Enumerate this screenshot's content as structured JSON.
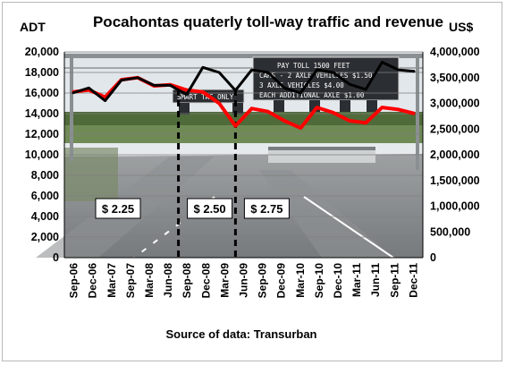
{
  "chart_data": {
    "type": "line",
    "title": "Pocahontas quaterly toll-way traffic and revenue",
    "ylabel_left": "ADT",
    "ylabel_right": "US$",
    "source": "Source of data:  Transurban",
    "categories": [
      "Sep-06",
      "Dec-06",
      "Mar-07",
      "Jun-07",
      "Sep-07",
      "Dec-07",
      "Mar-08",
      "Jun-08",
      "Sep-08",
      "Dec-08",
      "Mar-09",
      "Jun-09",
      "Sep-09",
      "Dec-09",
      "Mar-10",
      "Jun-10",
      "Sep-10",
      "Dec-10",
      "Mar-11",
      "Jun-11",
      "Sep-11",
      "Dec-11"
    ],
    "x_tick_labels": [
      "Sep-06",
      "Dec-06",
      "Mar-07",
      "Sep-07",
      "Mar-08",
      "Jun-08",
      "Sep-08",
      "Dec-08",
      "Mar-09",
      "Jun-09",
      "Sep-09",
      "Dec-09",
      "Mar-10",
      "Sep-10",
      "Dec-10",
      "Mar-11",
      "Jun-11",
      "Sep-11",
      "Dec-11"
    ],
    "yleft_lim": [
      0,
      20000
    ],
    "yleft_ticks": [
      "0",
      "2,000",
      "4,000",
      "6,000",
      "8,000",
      "10,000",
      "12,000",
      "14,000",
      "16,000",
      "18,000",
      "20,000"
    ],
    "yright_lim": [
      0,
      4000000
    ],
    "yright_ticks": [
      "0",
      "500,000",
      "1,000,000",
      "1,500,000",
      "2,000,000",
      "2,500,000",
      "3,000,000",
      "3,500,000",
      "4,000,000"
    ],
    "series": [
      {
        "axis": "left",
        "color": "#ff0000",
        "values": [
          16100,
          16300,
          15600,
          17300,
          17500,
          16700,
          16800,
          16300,
          16100,
          15000,
          12800,
          14500,
          14200,
          13300,
          12600,
          14600,
          14100,
          13300,
          13100,
          14600,
          14400,
          14000
        ]
      },
      {
        "axis": "right",
        "color": "#000000",
        "values": [
          3200000,
          3300000,
          3050000,
          3450000,
          3500000,
          3350000,
          3350000,
          3170000,
          3700000,
          3600000,
          3250000,
          3650000,
          3600000,
          3300000,
          3200000,
          3650000,
          3600000,
          3370000,
          3270000,
          3800000,
          3650000,
          3620000
        ]
      }
    ],
    "toll_markers": [
      {
        "label": "$ 2.25",
        "at_index": null
      },
      {
        "label": "$ 2.50",
        "at_index": 6.5
      },
      {
        "label": "$ 2.75",
        "at_index": 10.0
      }
    ],
    "grid": true
  },
  "sign": {
    "left": "SMART TAG ONLY",
    "right_lines": [
      "PAY TOLL 1500 FEET",
      "CARS - 2 AXLE VEHICLES $1.50",
      "3 AXLE VEHICLES $4.00",
      "EACH ADDITIONAL AXLE $1.00"
    ]
  }
}
